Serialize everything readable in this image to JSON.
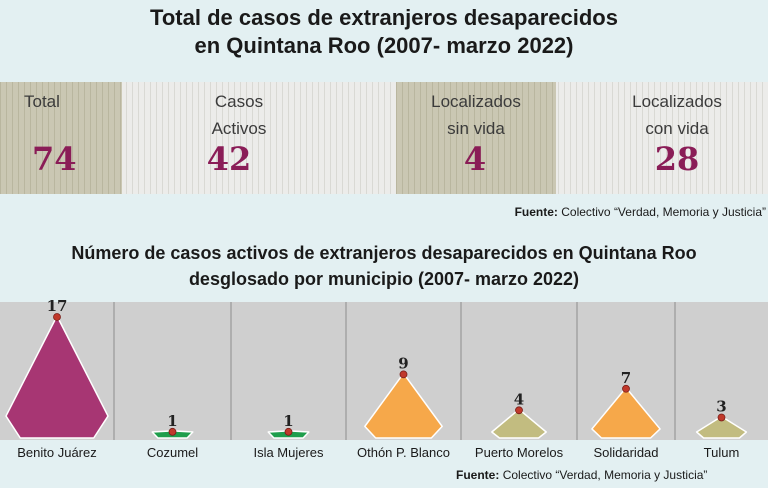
{
  "header": {
    "title_line1": "Total de casos de extranjeros desaparecidos",
    "title_line2": "en Quintana Roo (2007- marzo 2022)"
  },
  "stats": [
    {
      "label_line1": "Total",
      "label_line2": "",
      "value": "74"
    },
    {
      "label_line1": "Casos",
      "label_line2": "Activos",
      "value": "42"
    },
    {
      "label_line1": "Localizados",
      "label_line2": "sin vida",
      "value": "4"
    },
    {
      "label_line1": "Localizados",
      "label_line2": "con vida",
      "value": "28"
    }
  ],
  "source_top": {
    "label": "Fuente:",
    "text": "Colectivo “Verdad, Memoria y Justicia”"
  },
  "section2": {
    "title_line1": "Número de casos activos de extranjeros desaparecidos en Quintana Roo",
    "title_line2": "desglosado por municipio (2007- marzo 2022)"
  },
  "source_bottom": {
    "label": "Fuente:",
    "text": "Colectivo “Verdad, Memoria y Justicia”"
  },
  "colors": {
    "magenta": "#a73673",
    "green": "#1f9e4c",
    "orange": "#f6a84a",
    "khaki": "#c2bc80",
    "value_text": "#8a1d57",
    "chart_bg": "#cfcfcf"
  },
  "chart_data": {
    "type": "bar",
    "categories": [
      "Benito Juárez",
      "Cozumel",
      "Isla Mujeres",
      "Othón P. Blanco",
      "Puerto Morelos",
      "Solidaridad",
      "Tulum"
    ],
    "values": [
      17,
      1,
      1,
      9,
      4,
      7,
      3
    ],
    "bar_colors": [
      "#a73673",
      "#1f9e4c",
      "#1f9e4c",
      "#f6a84a",
      "#c2bc80",
      "#f6a84a",
      "#c2bc80"
    ],
    "title": "Número de casos activos de extranjeros desaparecidos en Quintana Roo desglosado por municipio (2007- marzo 2022)",
    "xlabel": "",
    "ylabel": "",
    "ylim": [
      0,
      17
    ],
    "grid": false,
    "legend": "none"
  }
}
